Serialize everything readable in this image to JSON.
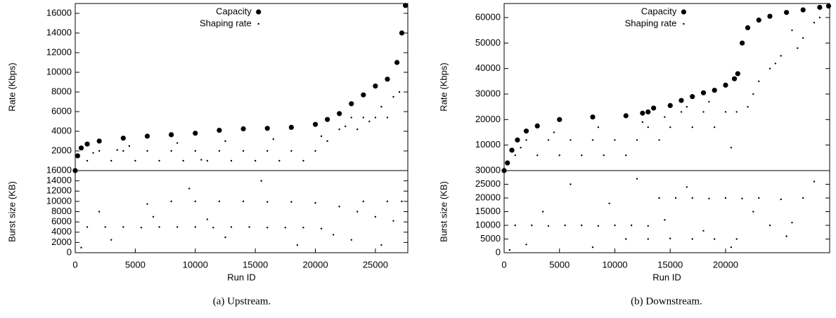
{
  "chart_data": [
    {
      "type": "scatter",
      "ylabel": "Rate (Kbps)",
      "xlim": [
        0,
        27700
      ],
      "ylim": [
        0,
        17000
      ],
      "yticks": [
        2000,
        4000,
        6000,
        8000,
        10000,
        12000,
        14000,
        16000
      ],
      "legend": "top",
      "series": [
        {
          "name": "Capacity",
          "color": "#000000",
          "marker": "large",
          "x": [
            0,
            200,
            500,
            1000,
            2000,
            4000,
            6000,
            8000,
            10000,
            12000,
            14000,
            16000,
            18000,
            20000,
            21000,
            22000,
            23000,
            24000,
            25000,
            26000,
            26800,
            27200,
            27500
          ],
          "values": [
            0,
            1500,
            2300,
            2700,
            3000,
            3300,
            3500,
            3650,
            3800,
            4100,
            4250,
            4300,
            4400,
            4700,
            5200,
            5800,
            6800,
            7700,
            8600,
            9300,
            11000,
            14000,
            16800
          ]
        },
        {
          "name": "Shaping rate",
          "color": "#000000",
          "marker": "small",
          "x": [
            1000,
            2000,
            3000,
            4000,
            5000,
            6000,
            7000,
            8000,
            9000,
            10000,
            11000,
            12000,
            13000,
            14000,
            15000,
            16000,
            17000,
            18000,
            19000,
            20000,
            21000,
            22000,
            23000,
            24000,
            25000,
            26000,
            27000,
            1500,
            4500,
            8500,
            12500,
            16500,
            20500,
            22500,
            23500,
            24500,
            25500,
            26500,
            3500,
            10500
          ],
          "values": [
            1000,
            2000,
            1000,
            2000,
            1000,
            2000,
            1000,
            2000,
            1000,
            2000,
            1000,
            2000,
            1000,
            2000,
            1000,
            2000,
            1000,
            2000,
            1000,
            2000,
            3000,
            4200,
            5400,
            5400,
            5400,
            5400,
            8000,
            1800,
            2500,
            2800,
            3000,
            3200,
            3500,
            4500,
            4200,
            5000,
            6500,
            7500,
            2100,
            1100
          ]
        }
      ]
    },
    {
      "type": "scatter",
      "ylabel": "Burst size (KB)",
      "xlabel": "Run ID",
      "xlim": [
        0,
        27700
      ],
      "ylim": [
        0,
        16000
      ],
      "xticks": [
        0,
        5000,
        10000,
        15000,
        20000,
        25000
      ],
      "yticks": [
        0,
        2000,
        4000,
        6000,
        8000,
        10000,
        12000,
        14000,
        16000
      ],
      "series": [
        {
          "name": "Burst size",
          "color": "#000000",
          "marker": "small",
          "x": [
            1000,
            2500,
            4000,
            5500,
            7000,
            8500,
            10000,
            11500,
            13000,
            14500,
            16000,
            17500,
            19000,
            20500,
            6000,
            8000,
            10000,
            12000,
            14000,
            16000,
            18000,
            20000,
            22000,
            23500,
            25000,
            26500,
            27200,
            24000,
            26000,
            500,
            3000,
            6500,
            9500,
            12500,
            15500,
            18500,
            21500,
            23000,
            25500,
            2000,
            11000
          ],
          "values": [
            5000,
            5000,
            5000,
            4900,
            5000,
            5000,
            5000,
            4900,
            5000,
            5000,
            4900,
            4900,
            4900,
            4700,
            9500,
            10000,
            10000,
            10000,
            10000,
            9900,
            9900,
            9700,
            9000,
            8000,
            7000,
            6200,
            10000,
            10000,
            10000,
            1000,
            2500,
            7000,
            12500,
            3000,
            14000,
            1500,
            3500,
            2500,
            1500,
            8000,
            6500
          ]
        }
      ]
    },
    {
      "type": "scatter",
      "ylabel": "Rate (Kbps)",
      "xlim": [
        0,
        29400
      ],
      "ylim": [
        0,
        65500
      ],
      "yticks": [
        10000,
        20000,
        30000,
        40000,
        50000,
        60000
      ],
      "legend": "top",
      "series": [
        {
          "name": "Capacity",
          "color": "#000000",
          "marker": "large",
          "x": [
            0,
            300,
            700,
            1200,
            2000,
            3000,
            5000,
            8000,
            11000,
            12500,
            13000,
            13500,
            15000,
            16000,
            17000,
            18000,
            19000,
            20000,
            20800,
            21100,
            21500,
            22000,
            23000,
            24000,
            25500,
            27000,
            28500,
            29300
          ],
          "values": [
            0,
            3000,
            8000,
            12000,
            15500,
            17500,
            20000,
            21000,
            21500,
            22500,
            23000,
            24500,
            25500,
            27500,
            29000,
            30500,
            31500,
            33500,
            36000,
            38000,
            50000,
            56000,
            59000,
            60500,
            62000,
            63000,
            64000,
            64500
          ]
        },
        {
          "name": "Shaping rate",
          "color": "#000000",
          "marker": "small",
          "x": [
            1000,
            2000,
            3000,
            4000,
            5000,
            6000,
            7000,
            8000,
            9000,
            10000,
            11000,
            12000,
            13000,
            14000,
            15000,
            16000,
            17000,
            18000,
            19000,
            20000,
            21000,
            22000,
            23000,
            24000,
            25000,
            26000,
            27000,
            28000,
            1500,
            4500,
            8500,
            12500,
            14500,
            16500,
            18500,
            20500,
            22500,
            24500,
            26500,
            28500
          ],
          "values": [
            6000,
            12000,
            6000,
            12000,
            6000,
            12000,
            6000,
            12000,
            6000,
            12000,
            6000,
            12000,
            17000,
            12000,
            17000,
            23000,
            17000,
            23000,
            17000,
            23000,
            23000,
            25000,
            35000,
            40000,
            45000,
            55000,
            52000,
            58000,
            9000,
            15000,
            17000,
            19000,
            21000,
            25000,
            27000,
            9000,
            30000,
            42000,
            48000,
            60000
          ]
        }
      ]
    },
    {
      "type": "scatter",
      "ylabel": "Burst size (KB)",
      "xlabel": "Run ID",
      "xlim": [
        0,
        29400
      ],
      "ylim": [
        0,
        30000
      ],
      "xticks": [
        0,
        5000,
        10000,
        15000,
        20000
      ],
      "yticks": [
        0,
        5000,
        10000,
        15000,
        20000,
        25000,
        30000
      ],
      "series": [
        {
          "name": "Burst size",
          "color": "#000000",
          "marker": "small",
          "x": [
            1000,
            2500,
            4000,
            5500,
            7000,
            8500,
            10000,
            11500,
            13000,
            14000,
            15500,
            17000,
            18500,
            20000,
            21500,
            23000,
            25000,
            27000,
            11000,
            13000,
            15000,
            17000,
            19000,
            21000,
            24000,
            26000,
            500,
            2000,
            3500,
            6000,
            8000,
            9500,
            12000,
            14500,
            16500,
            18000,
            20500,
            22500,
            25500,
            28000
          ],
          "values": [
            10000,
            10000,
            9800,
            10000,
            10000,
            9800,
            10000,
            10000,
            9800,
            20000,
            20000,
            20000,
            19800,
            20000,
            19800,
            20000,
            19500,
            20000,
            5000,
            5000,
            5200,
            5000,
            5000,
            5000,
            10000,
            11000,
            1000,
            3000,
            15000,
            25000,
            2000,
            18000,
            27000,
            12000,
            24000,
            8000,
            2000,
            15000,
            6000,
            26000
          ]
        }
      ]
    }
  ],
  "captions": [
    "(a) Upstream.",
    "(b) Downstream."
  ]
}
